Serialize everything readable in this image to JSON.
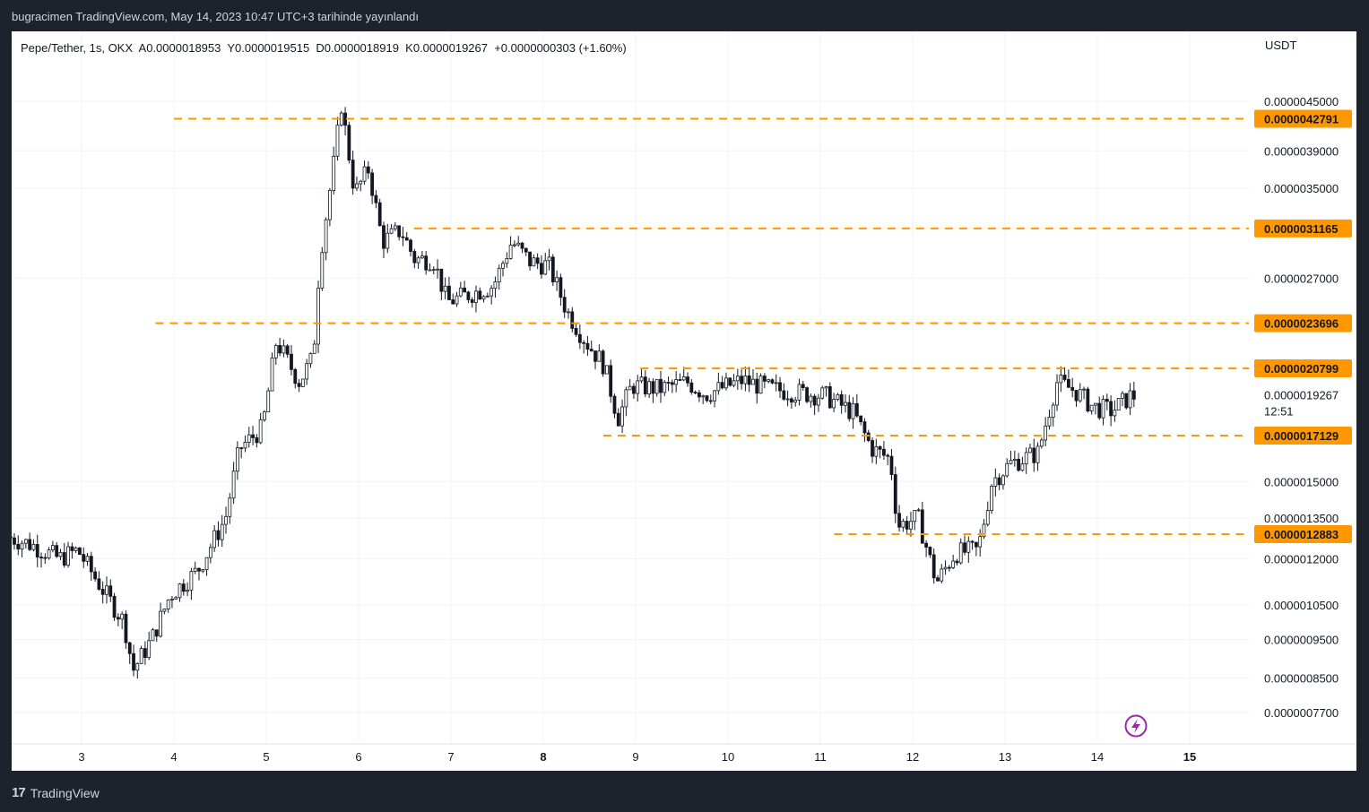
{
  "header": {
    "publish_line": "bugracimen TradingView.com, May 14, 2023 10:47 UTC+3 tarihinde yayınlandı"
  },
  "legend": {
    "symbol": "Pepe/Tether, 1s, OKX",
    "open": "A0.0000018953",
    "high": "Y0.0000019515",
    "low": "D0.0000018919",
    "close": "K0.0000019267",
    "change": "+0.0000000303 (+1.60%)"
  },
  "currency": "USDT",
  "footer": {
    "brand": "TradingView"
  },
  "colors": {
    "accent": "#ff9800",
    "up": "#131722",
    "down": "#131722",
    "grid": "#f0f3fa"
  },
  "icons": {
    "replay": "lightning-icon"
  },
  "chart_data": {
    "type": "candlestick",
    "x_ticks": [
      "3",
      "4",
      "5",
      "6",
      "7",
      "8",
      "9",
      "10",
      "11",
      "12",
      "13",
      "14",
      "15"
    ],
    "x_tick_bold": [
      "8",
      "15"
    ],
    "y_scale": "log",
    "y_ticks": [
      "0.0000045000",
      "0.0000039000",
      "0.0000035000",
      "0.0000027000",
      "0.0000015000",
      "0.0000013500",
      "0.0000012000",
      "0.0000010500",
      "0.0000009500",
      "0.0000008500",
      "0.0000007700"
    ],
    "current_price": {
      "value": "0.0000019267",
      "countdown": "12:51"
    },
    "horizontal_levels": [
      {
        "label": "0.0000042791",
        "value": 4.2791e-06,
        "start_day": 4.0
      },
      {
        "label": "0.0000031165",
        "value": 3.1165e-06,
        "start_day": 6.6
      },
      {
        "label": "0.0000023696",
        "value": 2.3696e-06,
        "start_day": 3.8
      },
      {
        "label": "0.0000020799",
        "value": 2.0799e-06,
        "start_day": 9.05
      },
      {
        "label": "0.0000017129",
        "value": 1.7129e-06,
        "start_day": 8.65
      },
      {
        "label": "0.0000012883",
        "value": 1.2883e-06,
        "start_day": 11.15
      }
    ],
    "price_path": [
      [
        2.23,
        1.28e-06
      ],
      [
        2.5,
        1.25e-06
      ],
      [
        2.8,
        1.2e-06
      ],
      [
        3.0,
        1.23e-06
      ],
      [
        3.2,
        1.13e-06
      ],
      [
        3.5,
        1e-06
      ],
      [
        3.6,
        8.7e-07
      ],
      [
        3.8,
        9.5e-07
      ],
      [
        4.0,
        1.08e-06
      ],
      [
        4.3,
        1.16e-06
      ],
      [
        4.6,
        1.35e-06
      ],
      [
        4.75,
        1.65e-06
      ],
      [
        5.0,
        1.75e-06
      ],
      [
        5.15,
        2.25e-06
      ],
      [
        5.4,
        2e-06
      ],
      [
        5.55,
        2.15e-06
      ],
      [
        5.62,
        2.85e-06
      ],
      [
        5.8,
        3.95e-06
      ],
      [
        5.85,
        4.5e-06
      ],
      [
        6.0,
        3.45e-06
      ],
      [
        6.15,
        3.7e-06
      ],
      [
        6.3,
        3e-06
      ],
      [
        6.5,
        3.1e-06
      ],
      [
        6.65,
        2.85e-06
      ],
      [
        6.85,
        2.85e-06
      ],
      [
        7.0,
        2.52e-06
      ],
      [
        7.25,
        2.58e-06
      ],
      [
        7.5,
        2.64e-06
      ],
      [
        7.7,
        3e-06
      ],
      [
        7.9,
        2.83e-06
      ],
      [
        8.1,
        2.8e-06
      ],
      [
        8.3,
        2.45e-06
      ],
      [
        8.5,
        2.25e-06
      ],
      [
        8.7,
        2.1e-06
      ],
      [
        8.85,
        1.8e-06
      ],
      [
        9.0,
        1.98e-06
      ],
      [
        9.3,
        1.96e-06
      ],
      [
        9.6,
        2e-06
      ],
      [
        9.8,
        1.93e-06
      ],
      [
        10.2,
        2.01e-06
      ],
      [
        10.5,
        1.96e-06
      ],
      [
        10.8,
        1.94e-06
      ],
      [
        11.1,
        1.92e-06
      ],
      [
        11.4,
        1.83e-06
      ],
      [
        11.6,
        1.65e-06
      ],
      [
        11.8,
        1.6e-06
      ],
      [
        11.88,
        1.32e-06
      ],
      [
        12.1,
        1.35e-06
      ],
      [
        12.3,
        1.12e-06
      ],
      [
        12.5,
        1.22e-06
      ],
      [
        12.75,
        1.23e-06
      ],
      [
        12.9,
        1.5e-06
      ],
      [
        13.1,
        1.58e-06
      ],
      [
        13.4,
        1.63e-06
      ],
      [
        13.6,
        2e-06
      ],
      [
        13.8,
        1.95e-06
      ],
      [
        14.0,
        1.86e-06
      ],
      [
        14.2,
        1.84e-06
      ],
      [
        14.4,
        1.92e-06
      ]
    ]
  }
}
